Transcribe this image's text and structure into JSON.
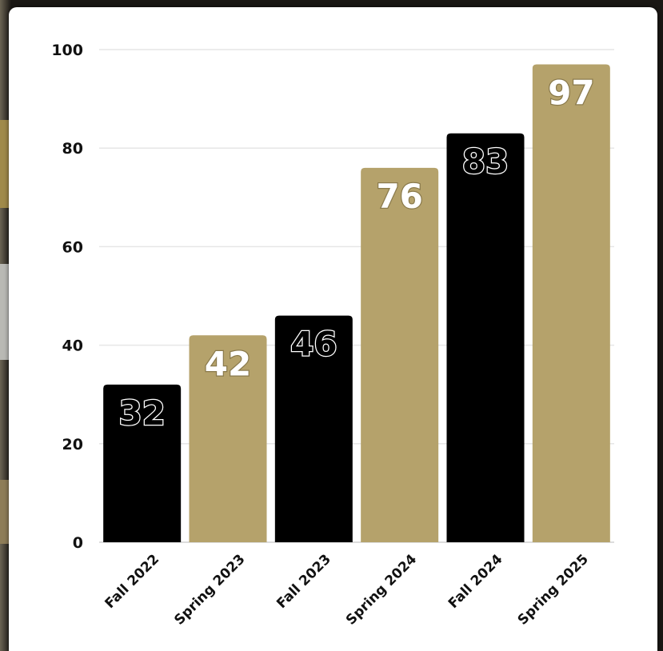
{
  "chart_data": {
    "type": "bar",
    "categories": [
      "Fall 2022",
      "Spring 2023",
      "Fall 2023",
      "Spring 2024",
      "Fall 2024",
      "Spring 2025"
    ],
    "values": [
      32,
      42,
      46,
      76,
      83,
      97
    ],
    "data_labels": [
      "32",
      "42",
      "46",
      "76",
      "83",
      "97"
    ],
    "bar_colors": [
      "#000000",
      "#b5a26b",
      "#000000",
      "#b5a26b",
      "#000000",
      "#b5a26b"
    ],
    "title": "",
    "xlabel": "",
    "ylabel": "",
    "ylim": [
      0,
      100
    ],
    "yticks": [
      0,
      20,
      40,
      60,
      80,
      100
    ],
    "ytick_labels": [
      "0",
      "20",
      "40",
      "60",
      "80",
      "100"
    ],
    "grid": true,
    "legend": "none"
  },
  "colors": {
    "black": "#000000",
    "gold": "#b5a26b",
    "grid": "#e6e6e6",
    "card": "#ffffff"
  }
}
